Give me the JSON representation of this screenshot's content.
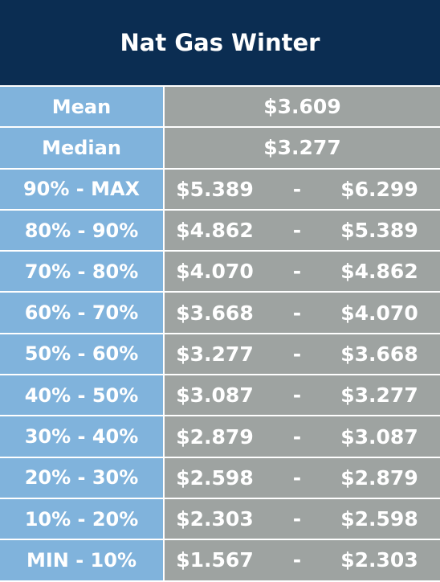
{
  "header": {
    "title": "Nat Gas Winter"
  },
  "table": {
    "rows": [
      [
        "Mean",
        "$3.609"
      ],
      [
        "Median",
        "$3.277"
      ],
      [
        "90% - MAX",
        "$5.389",
        "-",
        "$6.299"
      ],
      [
        "80% - 90%",
        "$4.862",
        "-",
        "$5.389"
      ],
      [
        "70% - 80%",
        "$4.070",
        "-",
        "$4.862"
      ],
      [
        "60% - 70%",
        "$3.668",
        "-",
        "$4.070"
      ],
      [
        "50% - 60%",
        "$3.277",
        "-",
        "$3.668"
      ],
      [
        "40% - 50%",
        "$3.087",
        "-",
        "$3.277"
      ],
      [
        "30% - 40%",
        "$2.879",
        "-",
        "$3.087"
      ],
      [
        "20% - 30%",
        "$2.598",
        "-",
        "$2.879"
      ],
      [
        "10% - 20%",
        "$2.303",
        "-",
        "$2.598"
      ],
      [
        "MIN - 10%",
        "$1.567",
        "-",
        "$2.303"
      ]
    ]
  }
}
